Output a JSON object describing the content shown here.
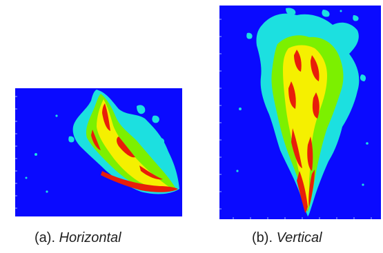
{
  "figure": {
    "panels": [
      {
        "id": "a",
        "caption_label": "(a). ",
        "caption_term": "Horizontal",
        "field_colors": {
          "background": "#0a0aff",
          "low": "#1ce0e0",
          "mid": "#7cf000",
          "high": "#f5f000",
          "peak": "#e81e0a"
        }
      },
      {
        "id": "b",
        "caption_label": "(b). ",
        "caption_term": "Vertical",
        "field_colors": {
          "background": "#0a0aff",
          "low": "#1ce0e0",
          "mid": "#7cf000",
          "high": "#f5f000",
          "peak": "#e81e0a"
        }
      }
    ]
  }
}
